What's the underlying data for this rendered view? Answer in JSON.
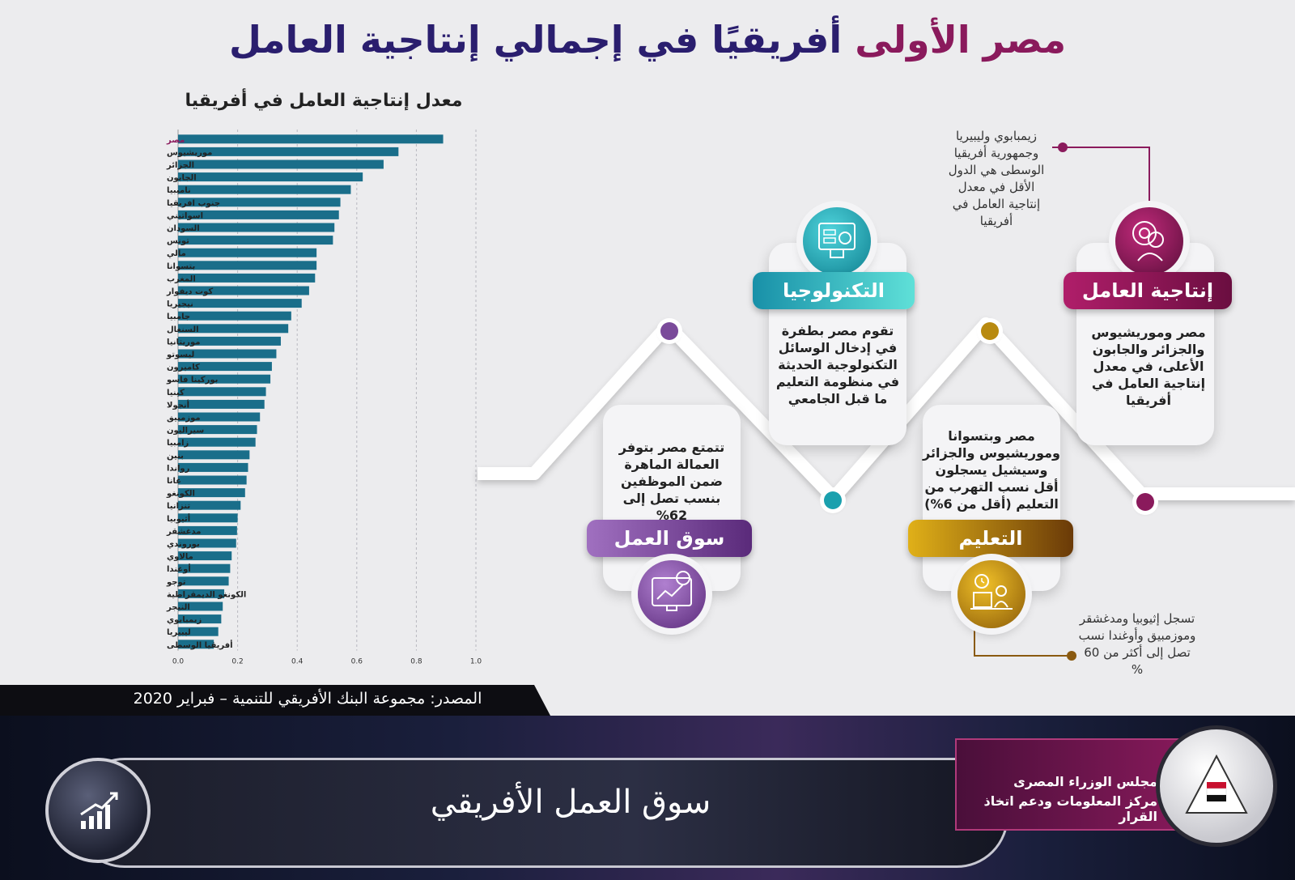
{
  "header": {
    "title_highlight": "مصر الأولى",
    "title_rest": "أفريقيًا في إجمالي إنتاجية العامل"
  },
  "chart_data": {
    "type": "bar",
    "orientation": "horizontal",
    "title": "معدل إنتاجية العامل في أفريقيا",
    "xlim": [
      0,
      1.0
    ],
    "xticks": [
      "0.0",
      "0.2",
      "0.4",
      "0.6",
      "0.8",
      "1.0"
    ],
    "grid": true,
    "bar_color": "#1a6e8a",
    "highlight_color": "#8a1a5c",
    "categories": [
      "مصر",
      "موريشيوس",
      "الجزائر",
      "الجابون",
      "ناميبيا",
      "جنوب افريقيا",
      "اسواتيني",
      "السودان",
      "تونس",
      "مالي",
      "بتسوانا",
      "المغرب",
      "كوت ديفوار",
      "نيجيريا",
      "جامبيا",
      "السنغال",
      "موريتانيا",
      "ليسوتو",
      "كاميرون",
      "بوركينا فاسو",
      "كينيا",
      "أنجولا",
      "موزمبيق",
      "سيراليون",
      "زامبيا",
      "بنين",
      "رواندا",
      "غانا",
      "الكونغو",
      "تنزانيا",
      "أثيوبيا",
      "مدغشقر",
      "بوروندي",
      "مالاوي",
      "أوغندا",
      "توجو",
      "الكونغو الديمقراطية",
      "النيجر",
      "زيمبابوي",
      "ليبيريا",
      "أفريقيا الوسطى"
    ],
    "values": [
      0.89,
      0.74,
      0.69,
      0.62,
      0.58,
      0.545,
      0.54,
      0.525,
      0.52,
      0.465,
      0.465,
      0.46,
      0.44,
      0.415,
      0.38,
      0.37,
      0.345,
      0.33,
      0.315,
      0.31,
      0.295,
      0.29,
      0.275,
      0.265,
      0.26,
      0.24,
      0.235,
      0.23,
      0.225,
      0.21,
      0.2,
      0.198,
      0.195,
      0.18,
      0.175,
      0.17,
      0.155,
      0.15,
      0.145,
      0.135,
      0.12
    ]
  },
  "source": "المصدر: مجموعة البنك الأفريقي للتنمية – فبراير 2020",
  "timeline": {
    "worker_productivity": {
      "label": "إنتاجية العامل",
      "text": "مصر وموريشيوس والجزائر والجابون الأعلى، في معدل إنتاجية العامل في أفريقيا",
      "note": "زيمبابوي وليبيريا وجمهورية أفريقيا الوسطى هي الدول الأقل في معدل إنتاجية العامل في أفريقيا",
      "color": "#8a1a5c"
    },
    "technology": {
      "label": "التكنولوجيا",
      "text": "تقوم مصر بطفرة في إدخال الوسائل التكنولوجية الحديثة في منظومة التعليم ما قبل الجامعي",
      "color": "#1aa0ae"
    },
    "education": {
      "label": "التعليم",
      "text": "مصر وبتسوانا وموريشيوس والجزائر وسيشيل يسجلون أقل نسب التهرب من التعليم (أقل من 6%)",
      "note": "تسجل إثيوبيا ومدغشقر وموزمبيق وأوغندا نسب تصل إلى أكثر من 60 %",
      "color": "#b88a10"
    },
    "labor_market": {
      "label": "سوق العمل",
      "text": "تتمتع مصر بتوفر العمالة الماهرة ضمن الموظفين بنسب تصل إلى 62%",
      "color": "#7a4a9a"
    }
  },
  "footer": {
    "title": "سوق العمل الأفريقي",
    "org_line1": "مجلس الوزراء المصرى",
    "org_line2": "مركز المعلومات ودعم اتخاذ القرار"
  },
  "icons": {
    "worker": "worker-gear-icon",
    "technology": "computer-robot-icon",
    "education": "desk-clock-icon",
    "labor_market": "monitor-chart-icon",
    "growth": "growth-bars-icon",
    "logo": "pyramid-flag-icon"
  }
}
